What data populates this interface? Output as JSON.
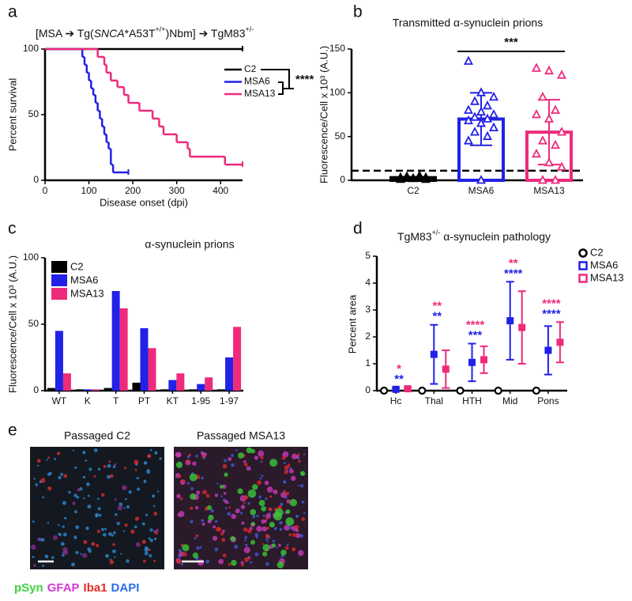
{
  "chart_data": [
    {
      "type": "step",
      "label": "a",
      "title": [
        "[MSA ➔ Tg(",
        "SNCA",
        "*A53T",
        "+/+",
        ")Nbm] ➔ TgM83",
        "+/-"
      ],
      "title_styles": [
        "normal",
        "italic",
        "normal",
        "sup",
        "normal",
        "sup"
      ],
      "xlabel": "Disease onset (dpi)",
      "ylabel": "Percent survival",
      "xlim": [
        0,
        450
      ],
      "ylim": [
        0,
        100
      ],
      "xticks": [
        0,
        100,
        200,
        300,
        400
      ],
      "yticks": [
        0,
        50,
        100
      ],
      "significance": "****",
      "series": [
        {
          "name": "C2",
          "color": "#000000",
          "x": [
            0,
            450
          ],
          "values": [
            100,
            100
          ]
        },
        {
          "name": "MSA6",
          "color": "#2121e8",
          "x": [
            0,
            85,
            90,
            95,
            100,
            105,
            110,
            115,
            120,
            125,
            130,
            135,
            140,
            145,
            150,
            155,
            190
          ],
          "values": [
            100,
            94,
            88,
            82,
            76,
            70,
            65,
            59,
            53,
            47,
            41,
            35,
            29,
            24,
            12,
            6,
            6
          ]
        },
        {
          "name": "MSA13",
          "color": "#ee2a7b",
          "x": [
            0,
            120,
            135,
            140,
            150,
            165,
            180,
            190,
            215,
            245,
            260,
            270,
            300,
            325,
            330,
            410,
            450
          ],
          "values": [
            100,
            94,
            88,
            82,
            76,
            71,
            65,
            59,
            53,
            47,
            41,
            35,
            29,
            24,
            18,
            12,
            12
          ]
        }
      ]
    },
    {
      "type": "scatter-bar",
      "label": "b",
      "title": "Transmitted α-synuclein prions",
      "ylabel": "Fluorescence/Cell x 10³ (A.U.)",
      "ylim": [
        0,
        150
      ],
      "yticks": [
        0,
        50,
        100,
        150
      ],
      "threshold": 11,
      "significance": "***",
      "categories": [
        "C2",
        "MSA6",
        "MSA13"
      ],
      "colors": [
        "#000000",
        "#2121e8",
        "#ee2a7b"
      ],
      "means": [
        3,
        70,
        55
      ],
      "sd": [
        1,
        30,
        37
      ],
      "points": [
        [
          1,
          2,
          3,
          4,
          5,
          3,
          2,
          1,
          4
        ],
        [
          136,
          100,
          95,
          90,
          85,
          80,
          78,
          75,
          72,
          70,
          68,
          65,
          60,
          55,
          50,
          45,
          0
        ],
        [
          128,
          125,
          120,
          95,
          80,
          75,
          70,
          55,
          45,
          40,
          30,
          20,
          15,
          0,
          0
        ]
      ]
    },
    {
      "type": "grouped-bar",
      "label": "c",
      "title": "α-synuclein prions",
      "ylabel": "Fluorescence/Cell x 10³ (A.U.)",
      "ylim": [
        0,
        100
      ],
      "yticks": [
        0,
        50,
        100
      ],
      "categories": [
        "WT",
        "K",
        "T",
        "PT",
        "KT",
        "1-95",
        "1-97"
      ],
      "series": [
        {
          "name": "C2",
          "color": "#000000",
          "values": [
            2,
            1,
            2,
            6,
            1,
            1,
            1
          ]
        },
        {
          "name": "MSA6",
          "color": "#2121e8",
          "values": [
            45,
            1,
            75,
            47,
            8,
            5,
            25
          ]
        },
        {
          "name": "MSA13",
          "color": "#ee2a7b",
          "values": [
            13,
            1,
            62,
            32,
            13,
            10,
            48
          ]
        }
      ]
    },
    {
      "type": "dot-error",
      "label": "d",
      "title": [
        "TgM83",
        "+/-",
        " α-synuclein pathology"
      ],
      "title_styles": [
        "normal",
        "sup",
        "normal"
      ],
      "ylabel": "Percent area",
      "ylim": [
        0,
        5
      ],
      "yticks": [
        0,
        1,
        2,
        3,
        4,
        5
      ],
      "categories": [
        "Hc",
        "Thal",
        "HTH",
        "Mid",
        "Pons"
      ],
      "series": [
        {
          "name": "C2",
          "color": "#000000",
          "marker": "circle",
          "values": [
            0,
            0,
            0,
            0,
            0
          ],
          "errors": [
            0,
            0,
            0,
            0,
            0
          ]
        },
        {
          "name": "MSA6",
          "color": "#2121e8",
          "marker": "square",
          "values": [
            0.05,
            1.35,
            1.05,
            2.6,
            1.5
          ],
          "errors": [
            0.05,
            1.1,
            0.7,
            1.45,
            0.9
          ],
          "significance": [
            "**",
            "**",
            "***",
            "****",
            "****"
          ]
        },
        {
          "name": "MSA13",
          "color": "#ee2a7b",
          "marker": "square",
          "values": [
            0.07,
            0.8,
            1.15,
            2.35,
            1.8
          ],
          "errors": [
            0.05,
            0.7,
            0.5,
            1.35,
            0.75
          ],
          "significance": [
            "*",
            "**",
            "****",
            "**",
            "****"
          ]
        }
      ]
    }
  ],
  "figure_e": {
    "label": "e",
    "titles": [
      "Passaged C2",
      "Passaged MSA13"
    ],
    "stains": [
      {
        "text": "pSyn",
        "color": "#3dd23d"
      },
      {
        "text": "GFAP",
        "color": "#d43ad4"
      },
      {
        "text": "Iba1",
        "color": "#e82a2a"
      },
      {
        "text": "DAPI",
        "color": "#2a6ee8"
      }
    ]
  }
}
